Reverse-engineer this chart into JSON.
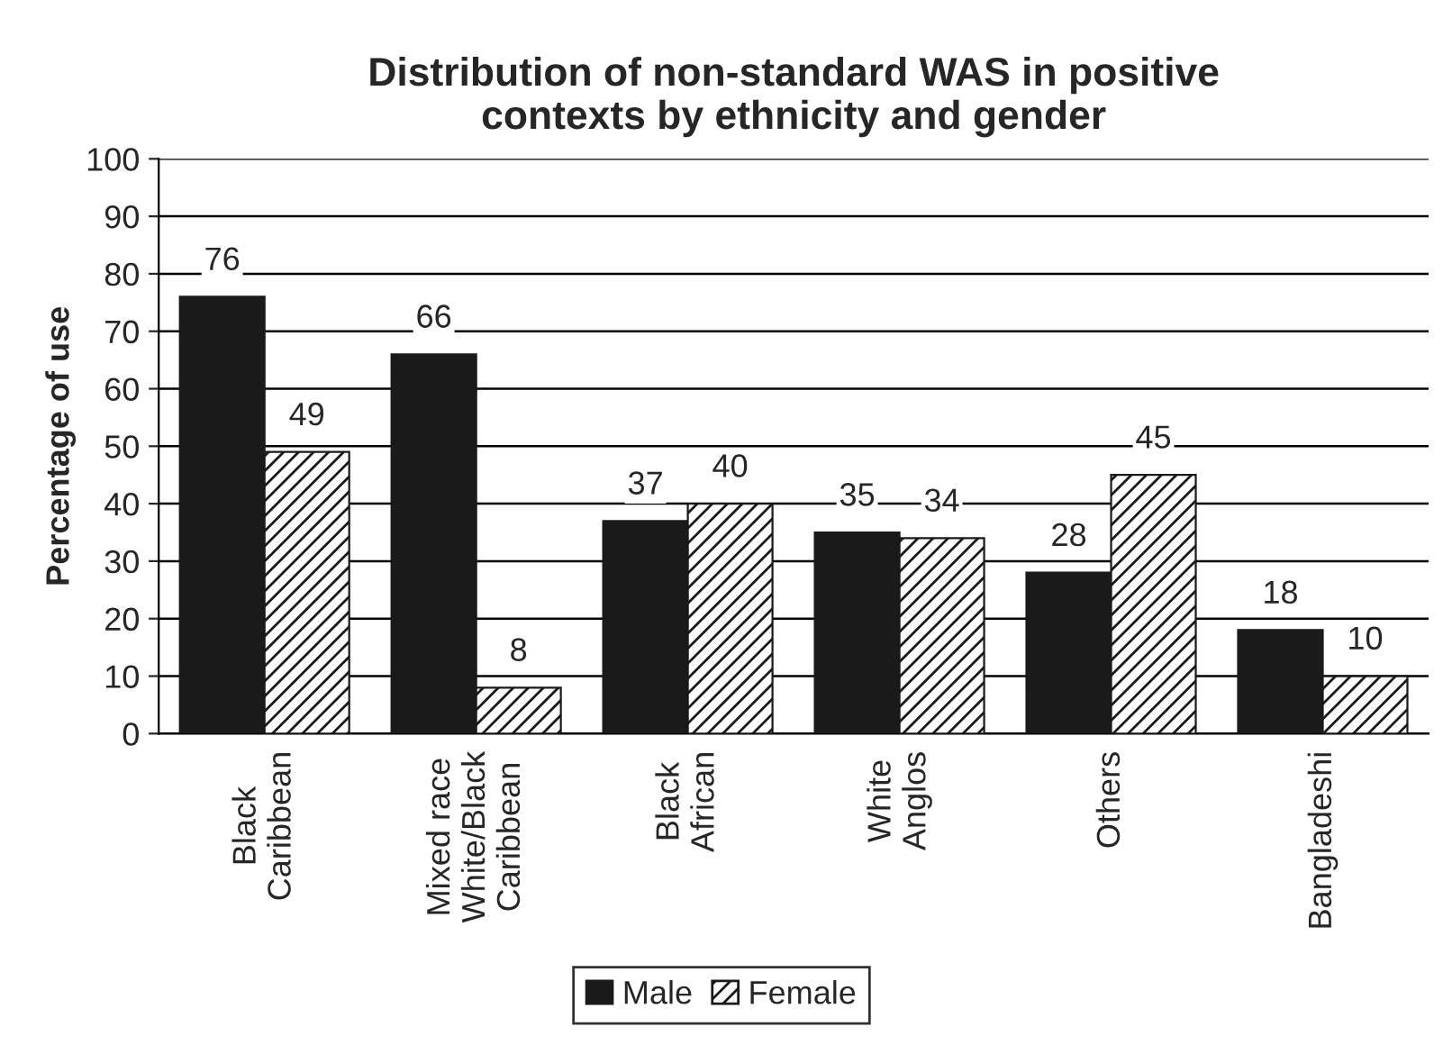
{
  "chart_data": {
    "type": "bar",
    "title": "Distribution of non-standard WAS in positive\ncontexts by ethnicity and gender",
    "ylabel": "Percentage of use",
    "categories": [
      "Black\nCaribbean",
      "Mixed race\nWhite/Black\nCaribbean",
      "Black\nAfrican",
      "White\nAnglos",
      "Others",
      "Bangladeshi"
    ],
    "series": [
      {
        "name": "Male",
        "color": "#1a1a1a",
        "values": [
          76,
          66,
          37,
          35,
          28,
          18
        ]
      },
      {
        "name": "Female",
        "color": "#1a1a1a",
        "values": [
          49,
          8,
          40,
          34,
          45,
          10
        ]
      }
    ],
    "ylim": [
      0,
      100
    ],
    "yticks": [
      0,
      10,
      20,
      30,
      40,
      50,
      60,
      70,
      80,
      90,
      100
    ],
    "grid": "y",
    "legend": "bottom",
    "data_labels": true
  }
}
